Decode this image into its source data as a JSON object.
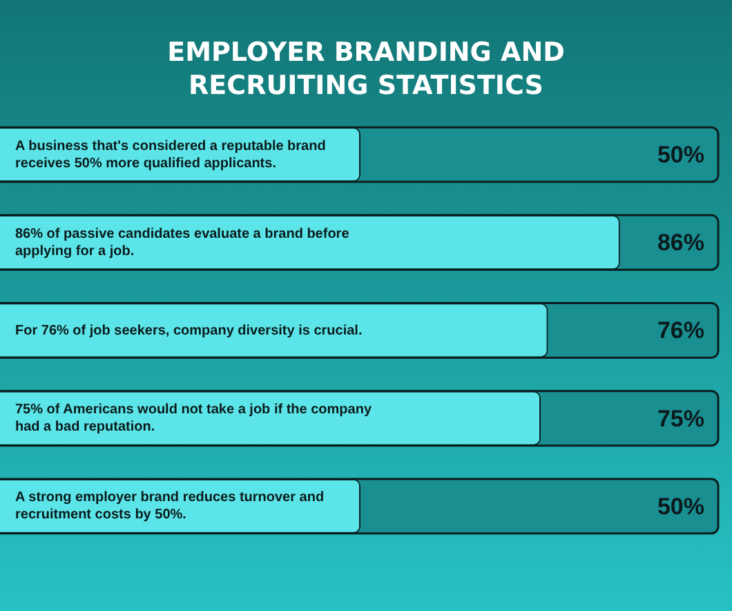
{
  "chart_data": {
    "type": "bar",
    "orientation": "horizontal",
    "title": "EMPLOYER BRANDING AND RECRUITING STATISTICS",
    "categories": [
      "A business that's considered a reputable brand receives 50% more qualified applicants.",
      "86% of passive candidates evaluate a brand before applying for a job.",
      "For 76% of job seekers, company diversity is crucial.",
      "75% of Americans would not take a job if the company had a bad reputation.",
      "A strong employer brand reduces turnover and recruitment costs by 50%."
    ],
    "values": [
      50,
      86,
      76,
      75,
      50
    ],
    "value_labels": [
      "50%",
      "86%",
      "76%",
      "75%",
      "50%"
    ],
    "color": "#5ce5e8",
    "xlim": [
      0,
      100
    ],
    "tick_labels": false
  }
}
